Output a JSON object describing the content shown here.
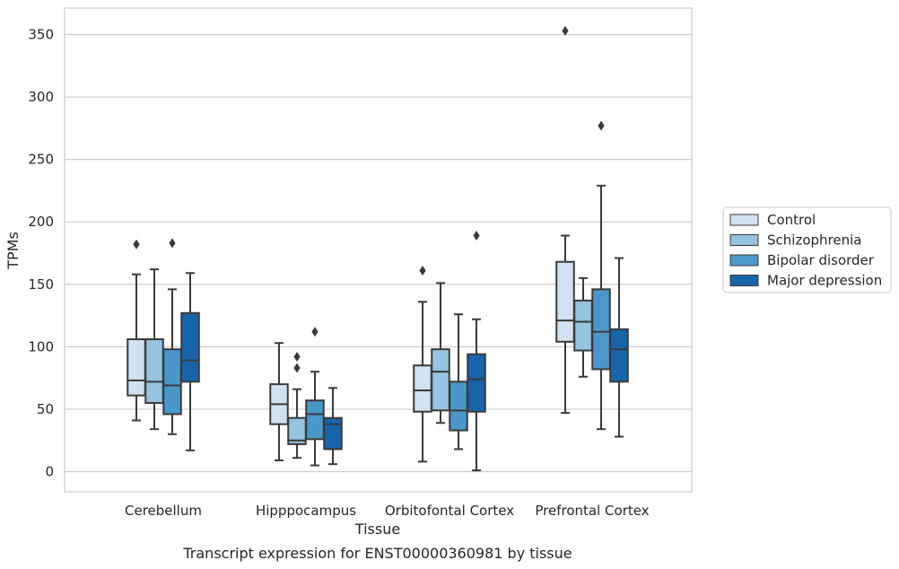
{
  "chart_data": {
    "type": "box",
    "caption": "Transcript expression for ENST00000360981 by tissue",
    "xlabel": "Tissue",
    "ylabel": "TPMs",
    "ylim": [
      -15,
      370
    ],
    "yticks": [
      0,
      50,
      100,
      150,
      200,
      250,
      300,
      350
    ],
    "grid": "horizontal",
    "legend_position": "right",
    "categories": [
      "Cerebellum",
      "Hipppocampus",
      "Orbitofontal Cortex",
      "Prefrontal Cortex"
    ],
    "series": [
      {
        "name": "Control",
        "color": "#d0e1f2",
        "boxes": [
          {
            "whislo": 41,
            "q1": 61,
            "med": 73,
            "q3": 106,
            "whishi": 158,
            "fliers": [
              182
            ]
          },
          {
            "whislo": 9,
            "q1": 38,
            "med": 54,
            "q3": 70,
            "whishi": 103,
            "fliers": []
          },
          {
            "whislo": 8,
            "q1": 48,
            "med": 65,
            "q3": 85,
            "whishi": 136,
            "fliers": [
              161
            ]
          },
          {
            "whislo": 47,
            "q1": 104,
            "med": 121,
            "q3": 168,
            "whishi": 189,
            "fliers": [
              353
            ]
          }
        ]
      },
      {
        "name": "Schizophrenia",
        "color": "#94c4df",
        "boxes": [
          {
            "whislo": 34,
            "q1": 55,
            "med": 72,
            "q3": 106,
            "whishi": 162,
            "fliers": []
          },
          {
            "whislo": 11,
            "q1": 22,
            "med": 25,
            "q3": 43,
            "whishi": 66,
            "fliers": [
              83,
              92
            ]
          },
          {
            "whislo": 39,
            "q1": 49,
            "med": 80,
            "q3": 98,
            "whishi": 151,
            "fliers": []
          },
          {
            "whislo": 76,
            "q1": 97,
            "med": 120,
            "q3": 137,
            "whishi": 155,
            "fliers": []
          }
        ]
      },
      {
        "name": "Bipolar disorder",
        "color": "#4a98c9",
        "boxes": [
          {
            "whislo": 30,
            "q1": 46,
            "med": 69,
            "q3": 98,
            "whishi": 146,
            "fliers": [
              183
            ]
          },
          {
            "whislo": 5,
            "q1": 26,
            "med": 46,
            "q3": 57,
            "whishi": 80,
            "fliers": [
              112
            ]
          },
          {
            "whislo": 18,
            "q1": 33,
            "med": 49,
            "q3": 72,
            "whishi": 126,
            "fliers": []
          },
          {
            "whislo": 34,
            "q1": 82,
            "med": 112,
            "q3": 146,
            "whishi": 229,
            "fliers": [
              277
            ]
          }
        ]
      },
      {
        "name": "Major depression",
        "color": "#1764ab",
        "boxes": [
          {
            "whislo": 17,
            "q1": 72,
            "med": 89,
            "q3": 127,
            "whishi": 159,
            "fliers": []
          },
          {
            "whislo": 6,
            "q1": 18,
            "med": 38,
            "q3": 43,
            "whishi": 67,
            "fliers": []
          },
          {
            "whislo": 1,
            "q1": 48,
            "med": 74,
            "q3": 94,
            "whishi": 122,
            "fliers": [
              189
            ]
          },
          {
            "whislo": 28,
            "q1": 72,
            "med": 98,
            "q3": 114,
            "whishi": 171,
            "fliers": []
          }
        ]
      }
    ]
  }
}
